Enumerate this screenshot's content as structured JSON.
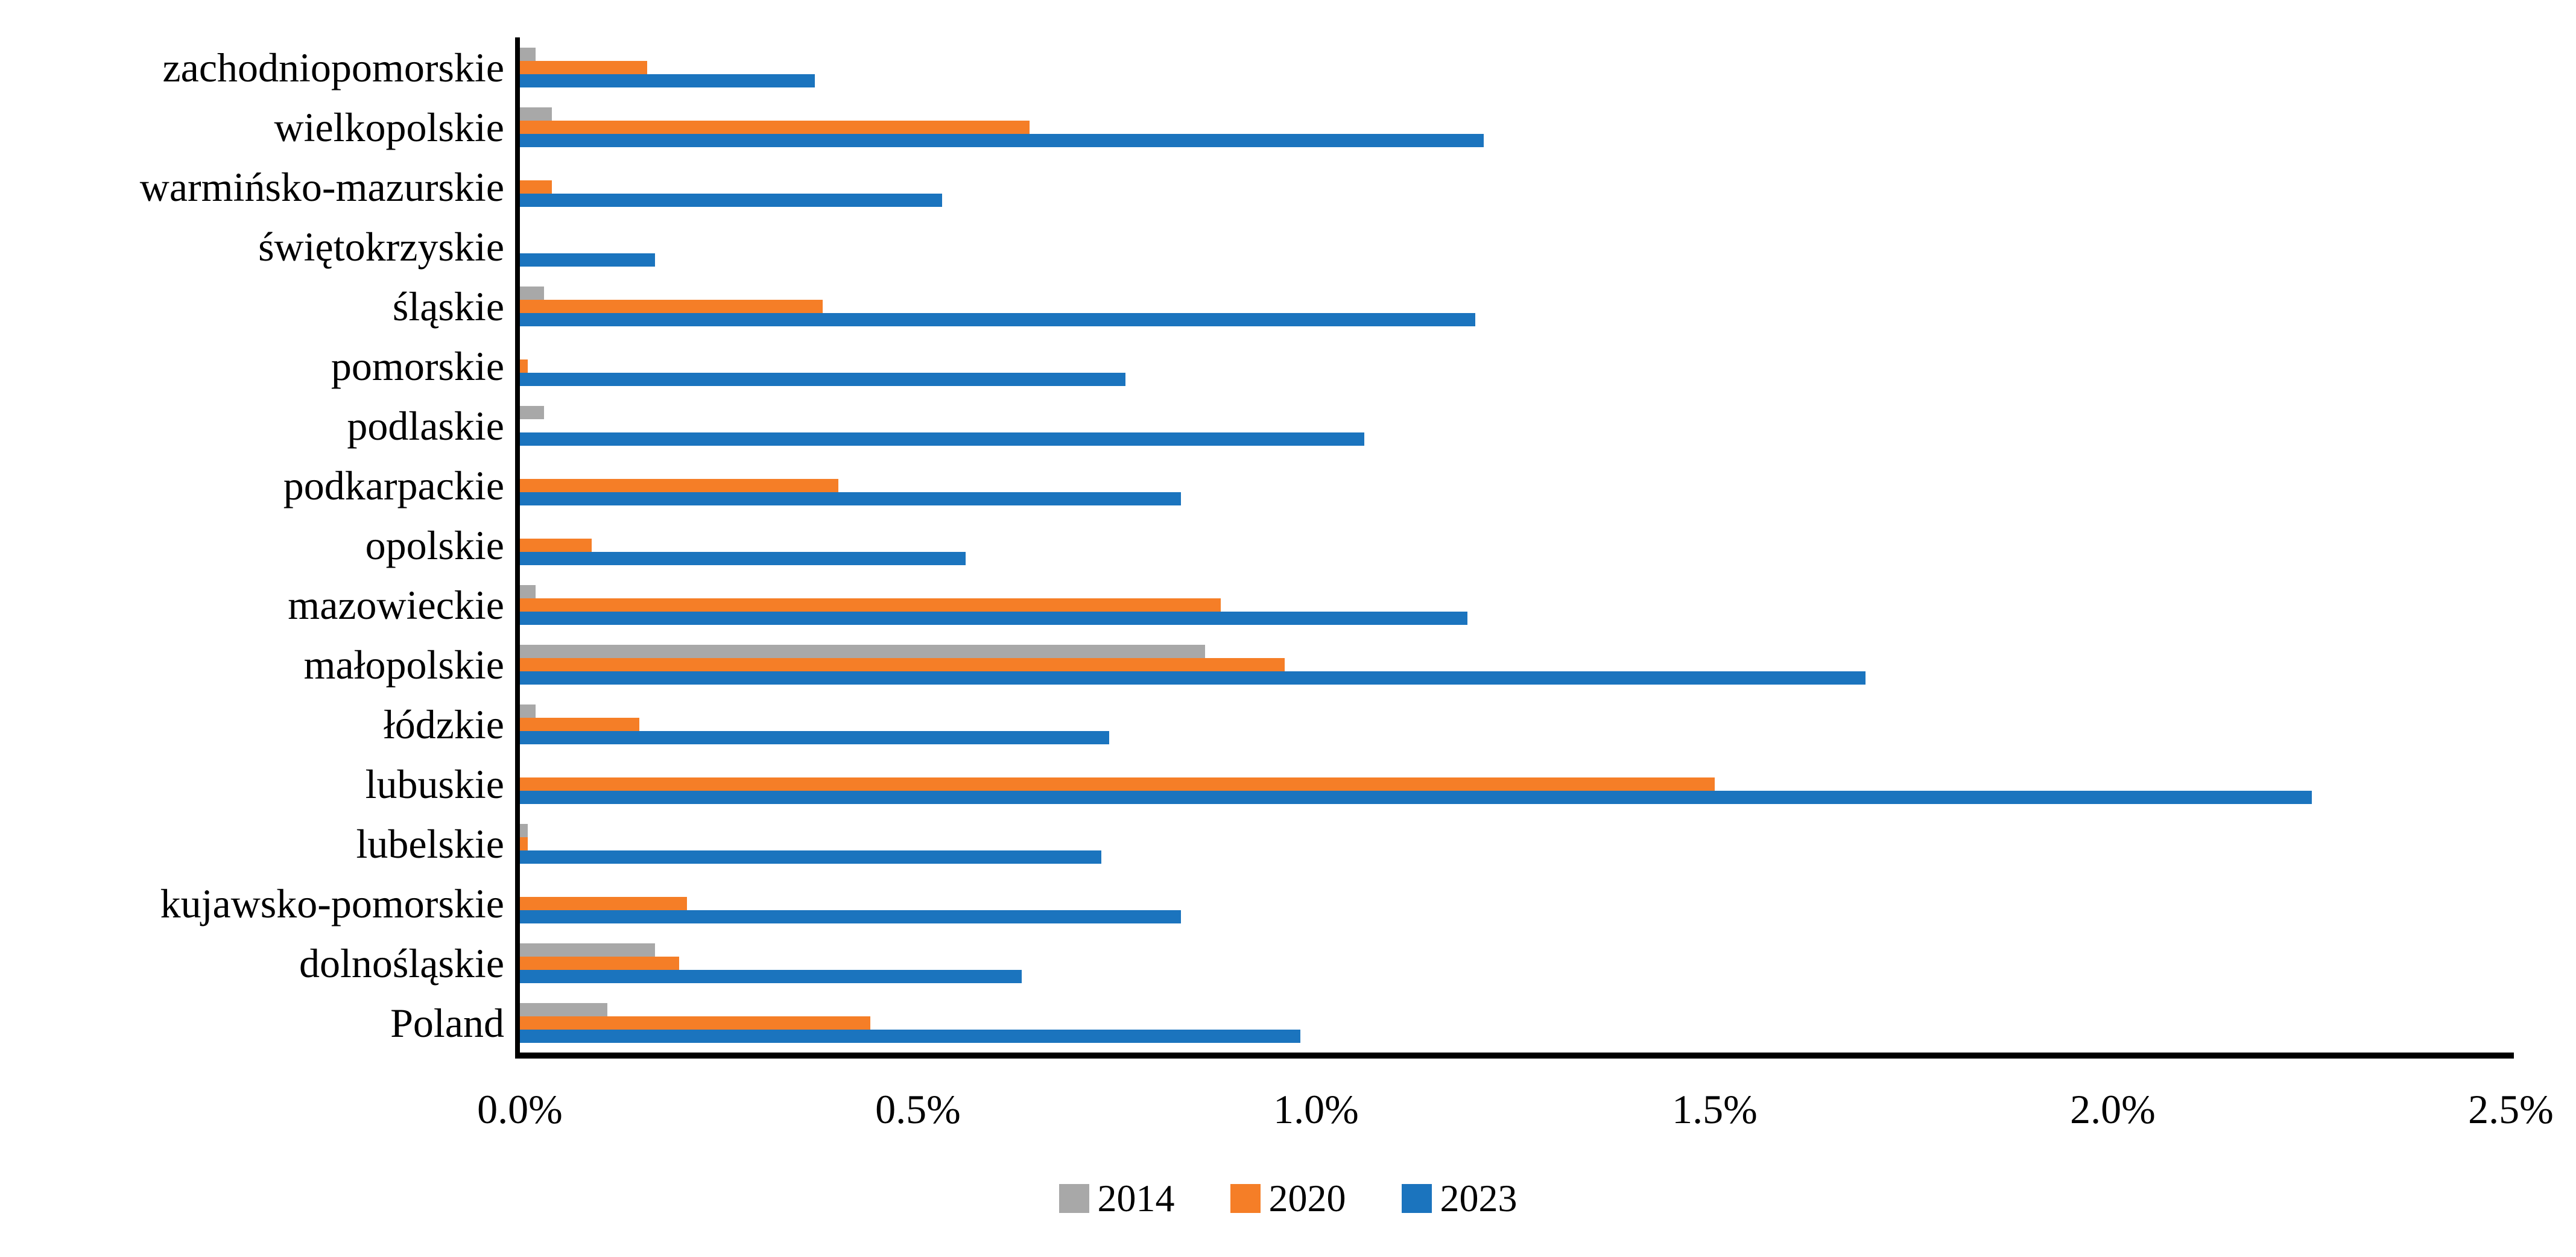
{
  "chart_data": {
    "type": "bar",
    "orientation": "horizontal",
    "title": "",
    "xlabel": "",
    "ylabel": "",
    "unit": "percent",
    "xlim": [
      0,
      2.5
    ],
    "grid": false,
    "legend_position": "bottom-center",
    "x_ticks": [
      "0.0%",
      "0.5%",
      "1.0%",
      "1.5%",
      "2.0%",
      "2.5%"
    ],
    "x_tick_values": [
      0.0,
      0.5,
      1.0,
      1.5,
      2.0,
      2.5
    ],
    "categories": [
      "zachodniopomorskie",
      "wielkopolskie",
      "warmińsko-mazurskie",
      "świętokrzyskie",
      "śląskie",
      "pomorskie",
      "podlaskie",
      "podkarpackie",
      "opolskie",
      "mazowieckie",
      "małopolskie",
      "łódzkie",
      "lubuskie",
      "lubelskie",
      "kujawsko-pomorskie",
      "dolnośląskie",
      "Poland"
    ],
    "series": [
      {
        "name": "2014",
        "color": "#A8A8A8",
        "values": [
          0.02,
          0.04,
          0.0,
          0.0,
          0.03,
          0.0,
          0.03,
          0.0,
          0.0,
          0.02,
          0.86,
          0.02,
          0.0,
          0.01,
          0.0,
          0.17,
          0.11
        ]
      },
      {
        "name": "2020",
        "color": "#F57E27",
        "values": [
          0.16,
          0.64,
          0.04,
          0.0,
          0.38,
          0.01,
          0.0,
          0.4,
          0.09,
          0.88,
          0.96,
          0.15,
          1.5,
          0.01,
          0.21,
          0.2,
          0.44
        ]
      },
      {
        "name": "2023",
        "color": "#1B74BE",
        "values": [
          0.37,
          1.21,
          0.53,
          0.17,
          1.2,
          0.76,
          1.06,
          0.83,
          0.56,
          1.19,
          1.69,
          0.74,
          2.25,
          0.73,
          0.83,
          0.63,
          0.98
        ]
      }
    ],
    "axis_color": "#000000"
  }
}
